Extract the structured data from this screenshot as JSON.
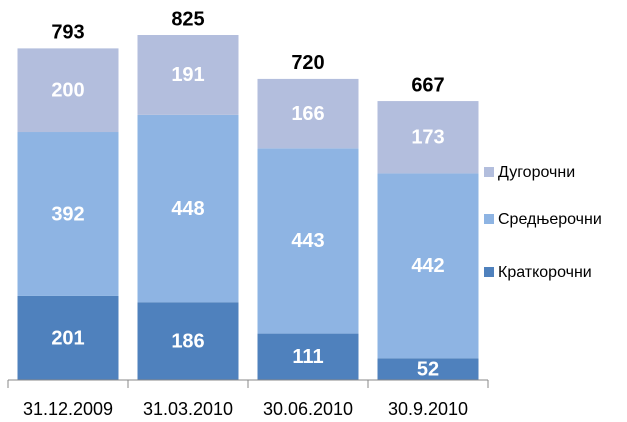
{
  "chart_data": {
    "type": "stacked_bar",
    "categories": [
      "31.12.2009",
      "31.03.2010",
      "30.06.2010",
      "30.9.2010"
    ],
    "series": [
      {
        "name": "Краткорочни",
        "color": "#4f81bd",
        "values": [
          201,
          186,
          111,
          52
        ]
      },
      {
        "name": "Средњерочни",
        "color": "#8eb4e3",
        "values": [
          392,
          448,
          443,
          442
        ]
      },
      {
        "name": "Дугорочни",
        "color": "#b3bedd",
        "values": [
          200,
          191,
          166,
          173
        ]
      }
    ],
    "totals": [
      793,
      825,
      720,
      667
    ]
  }
}
